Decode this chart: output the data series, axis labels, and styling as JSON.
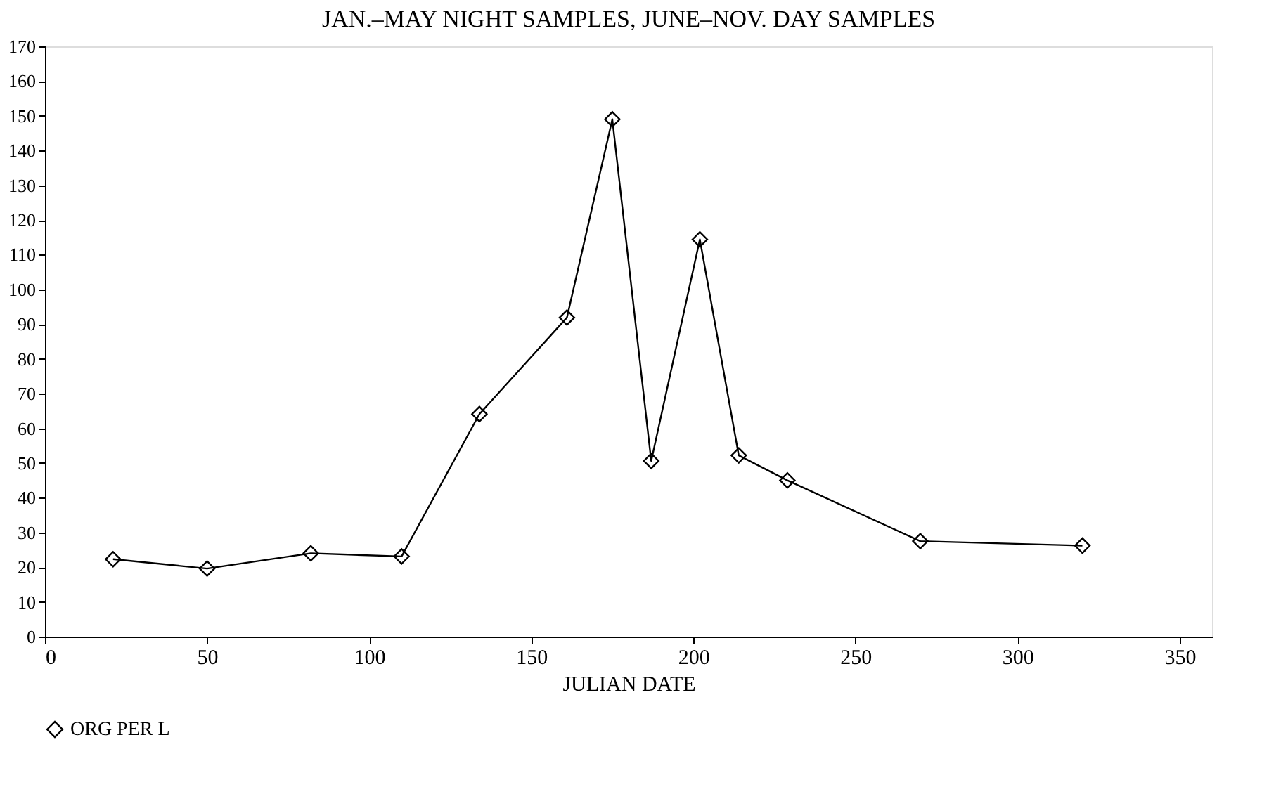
{
  "chart_data": {
    "type": "line",
    "title": "JAN.–MAY NIGHT SAMPLES, JUNE–NOV. DAY SAMPLES",
    "xlabel": "JULIAN DATE",
    "x": [
      21,
      50,
      82,
      110,
      134,
      161,
      175,
      187,
      202,
      214,
      229,
      270,
      320
    ],
    "series": [
      {
        "name": "ORG PER L",
        "color": "#000000",
        "values": [
          22.3,
          19.6,
          24,
          23.1,
          64.1,
          91.9,
          149,
          50.6,
          114.4,
          52.2,
          45,
          27.5,
          26.2
        ]
      }
    ],
    "xlim": [
      0,
      360
    ],
    "xticks": [
      0,
      50,
      100,
      150,
      200,
      250,
      300,
      350
    ],
    "ylim": [
      0,
      170
    ],
    "yticks": [
      0,
      10,
      20,
      30,
      40,
      50,
      60,
      70,
      80,
      90,
      100,
      110,
      120,
      130,
      140,
      150,
      160,
      170
    ],
    "marker": "diamond",
    "line_style": "solid",
    "grid": false,
    "legend": "bottom left"
  }
}
